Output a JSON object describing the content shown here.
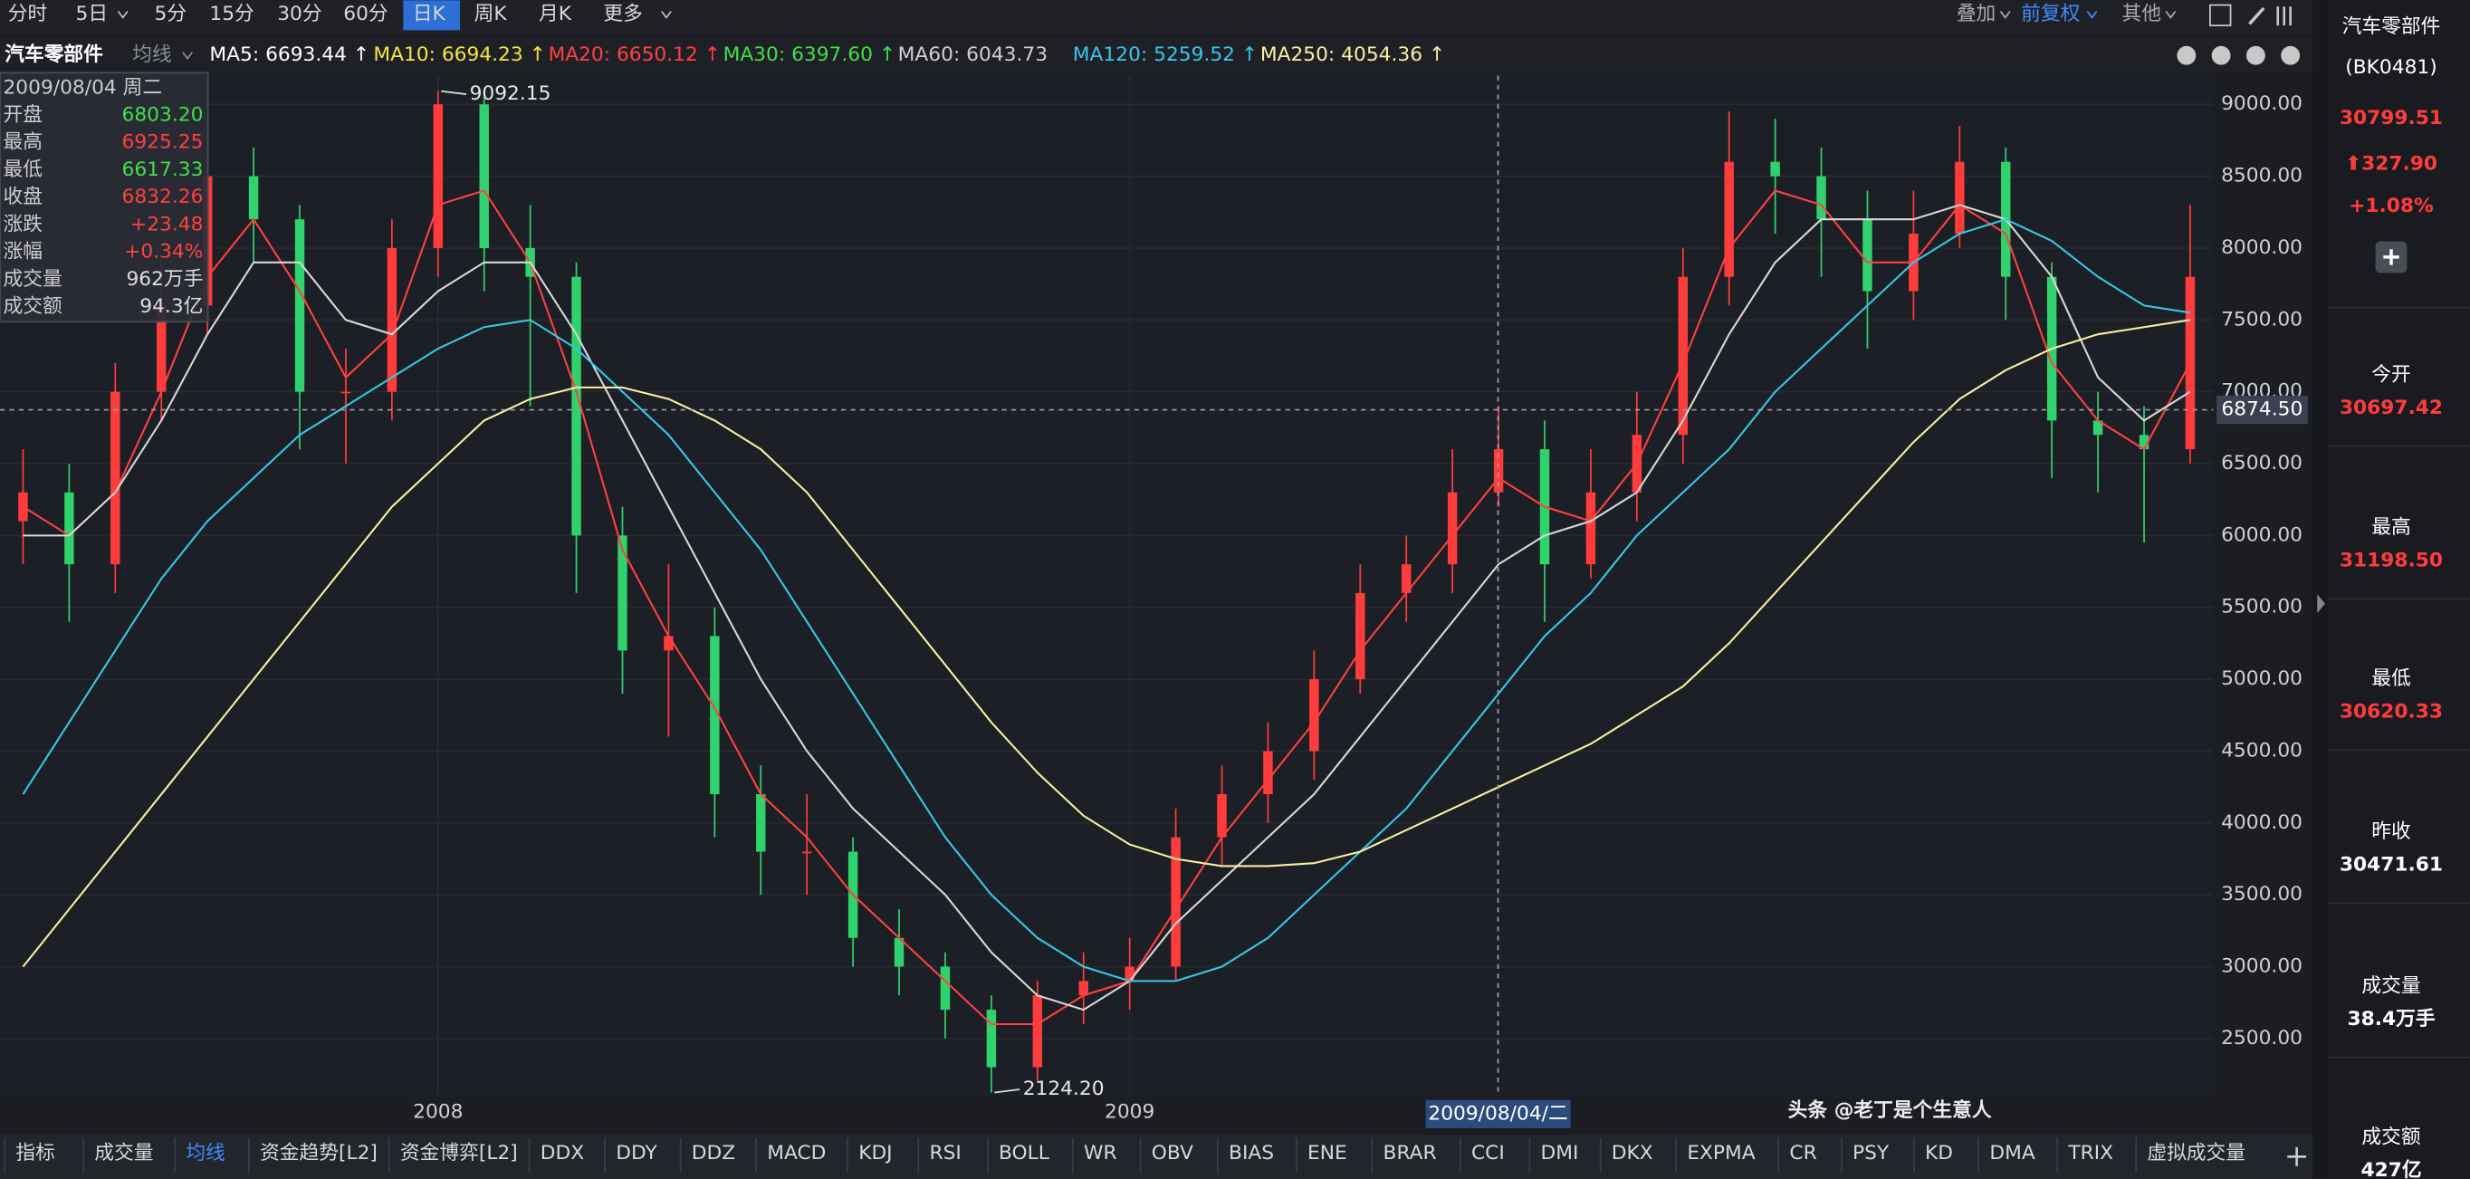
{
  "toolbar": {
    "periods": [
      "分时",
      "5日",
      "5分",
      "15分",
      "30分",
      "60分",
      "日K",
      "周K",
      "月K",
      "更多"
    ],
    "tools": [
      "叠加",
      "前复权",
      "其他"
    ]
  },
  "ma_bar": {
    "name": "汽车零部件",
    "label": "均线",
    "items": [
      {
        "text": "MA5: 6693.44 ↑",
        "color": "#ffffff"
      },
      {
        "text": "MA10: 6694.23 ↑",
        "color": "#f5e63c"
      },
      {
        "text": "MA20: 6650.12 ↑",
        "color": "#ff4040"
      },
      {
        "text": "MA30: 6397.60 ↑",
        "color": "#3ee04a"
      },
      {
        "text": "MA60: 6043.73",
        "color": "#d0d0d0"
      },
      {
        "text": "MA120: 5259.52 ↑",
        "color": "#35c8e8"
      },
      {
        "text": "MA250: 4054.36 ↑",
        "color": "#f8f0a0"
      }
    ]
  },
  "info_panel": {
    "date": "2009/08/04 周二",
    "rows": [
      {
        "label": "开盘",
        "value": "6803.20",
        "color": "#3ee04a"
      },
      {
        "label": "最高",
        "value": "6925.25",
        "color": "#ff4040"
      },
      {
        "label": "最低",
        "value": "6617.33",
        "color": "#3ee04a"
      },
      {
        "label": "收盘",
        "value": "6832.26",
        "color": "#ff4040"
      },
      {
        "label": "涨跌",
        "value": "+23.48",
        "color": "#ff4040"
      },
      {
        "label": "涨幅",
        "value": "+0.34%",
        "color": "#ff4040"
      },
      {
        "label": "成交量",
        "value": "962万手",
        "color": "#dddddd"
      },
      {
        "label": "成交额",
        "value": "94.3亿",
        "color": "#dddddd"
      }
    ]
  },
  "chart_data": {
    "type": "candlestick",
    "categories": [
      null,
      null,
      null,
      null,
      null,
      null,
      null,
      null,
      null,
      "2008",
      null,
      null,
      null,
      null,
      null,
      null,
      null,
      null,
      null,
      null,
      null,
      null,
      null,
      null,
      "2009",
      null,
      null,
      null,
      null,
      null,
      null,
      null,
      null,
      null,
      null,
      null,
      null,
      null,
      null,
      null,
      null,
      null,
      null,
      null,
      null,
      null,
      null,
      null
    ],
    "open": [
      6100,
      6300,
      5800,
      7000,
      7600,
      8500,
      8200,
      7000,
      7000,
      8000,
      9000,
      8000,
      7800,
      6000,
      5200,
      5300,
      4200,
      3800,
      3800,
      3200,
      3000,
      2700,
      2300,
      2800,
      2900,
      3000,
      3900,
      4200,
      4500,
      5000,
      5600,
      5800,
      6300,
      6600,
      5800,
      6300,
      6700,
      7800,
      8600,
      8500,
      8200,
      7700,
      8100,
      8600,
      7800,
      6800,
      6700,
      6600
    ],
    "high": [
      6600,
      6500,
      7200,
      7900,
      8800,
      8700,
      8300,
      7300,
      8200,
      9092.15,
      9050,
      8300,
      7900,
      6200,
      5800,
      5500,
      4400,
      4200,
      3900,
      3400,
      3100,
      2800,
      2900,
      3100,
      3200,
      4100,
      4400,
      4700,
      5200,
      5800,
      6000,
      6600,
      6900,
      6800,
      6600,
      7000,
      8000,
      8950,
      8900,
      8700,
      8400,
      8400,
      8850,
      8700,
      7900,
      7000,
      6900,
      8300
    ],
    "low": [
      5800,
      5400,
      5600,
      6800,
      7400,
      7900,
      6600,
      6500,
      6800,
      7800,
      7700,
      6900,
      5600,
      4900,
      4600,
      3900,
      3500,
      3500,
      3000,
      2800,
      2500,
      2124.2,
      2200,
      2600,
      2700,
      2900,
      3700,
      4000,
      4300,
      4900,
      5400,
      5600,
      6200,
      5400,
      5700,
      6100,
      6500,
      7600,
      8100,
      7800,
      7300,
      7500,
      8000,
      7500,
      6400,
      6300,
      5950,
      6500
    ],
    "close": [
      6300,
      5800,
      7000,
      7600,
      8500,
      8200,
      7000,
      7000,
      8000,
      9000,
      8000,
      7800,
      6000,
      5200,
      5300,
      4200,
      3800,
      3800,
      3200,
      3000,
      2700,
      2300,
      2800,
      2900,
      3000,
      3900,
      4200,
      4500,
      5000,
      5600,
      5800,
      6300,
      6600,
      5800,
      6300,
      6700,
      7800,
      8600,
      8500,
      8200,
      7700,
      8100,
      8600,
      7800,
      6800,
      6700,
      6600,
      7800
    ],
    "up_color": "#ff3c3c",
    "down_color": "#2fd26c",
    "series": [
      {
        "name": "MA20",
        "color": "#ff4040",
        "values": [
          6200,
          6000,
          6300,
          7000,
          7800,
          8200,
          7700,
          7100,
          7400,
          8300,
          8400,
          7900,
          7000,
          5900,
          5300,
          4800,
          4200,
          3900,
          3500,
          3200,
          2900,
          2600,
          2600,
          2800,
          2900,
          3400,
          3900,
          4300,
          4700,
          5200,
          5600,
          6000,
          6400,
          6200,
          6100,
          6500,
          7200,
          8000,
          8400,
          8300,
          7900,
          7900,
          8300,
          8100,
          7200,
          6800,
          6600,
          7200
        ]
      },
      {
        "name": "MA60",
        "color": "#d8d8d8",
        "values": [
          6000,
          6000,
          6300,
          6800,
          7400,
          7900,
          7900,
          7500,
          7400,
          7700,
          7900,
          7900,
          7400,
          6800,
          6200,
          5600,
          5000,
          4500,
          4100,
          3800,
          3500,
          3100,
          2800,
          2700,
          2900,
          3300,
          3600,
          3900,
          4200,
          4600,
          5000,
          5400,
          5800,
          6000,
          6100,
          6300,
          6800,
          7400,
          7900,
          8200,
          8200,
          8200,
          8300,
          8200,
          7800,
          7100,
          6800,
          7000
        ]
      },
      {
        "name": "MA120",
        "color": "#35c8e8",
        "values": [
          4200,
          4700,
          5200,
          5700,
          6100,
          6400,
          6700,
          6900,
          7100,
          7300,
          7450,
          7500,
          7300,
          7000,
          6700,
          6300,
          5900,
          5400,
          4900,
          4400,
          3900,
          3500,
          3200,
          3000,
          2900,
          2900,
          3000,
          3200,
          3500,
          3800,
          4100,
          4500,
          4900,
          5300,
          5600,
          6000,
          6300,
          6600,
          7000,
          7300,
          7600,
          7900,
          8100,
          8200,
          8050,
          7800,
          7600,
          7550
        ]
      },
      {
        "name": "MA250",
        "color": "#f8f0a0",
        "values": [
          3000,
          3400,
          3800,
          4200,
          4600,
          5000,
          5400,
          5800,
          6200,
          6500,
          6800,
          6950,
          7030,
          7030,
          6950,
          6800,
          6600,
          6300,
          5900,
          5500,
          5100,
          4700,
          4350,
          4050,
          3850,
          3750,
          3700,
          3700,
          3720,
          3800,
          3950,
          4100,
          4250,
          4400,
          4550,
          4750,
          4950,
          5250,
          5600,
          5950,
          6300,
          6650,
          6950,
          7150,
          7300,
          7400,
          7450,
          7500
        ]
      }
    ],
    "annotations": [
      {
        "value": 9092.15,
        "label": "9092.15"
      },
      {
        "value": 2124.2,
        "label": "2124.20"
      }
    ],
    "crosshair": {
      "value": 6874.5,
      "label": "6874.50",
      "date_label": "2009/08/04/二"
    },
    "ylim": [
      2100,
      9200
    ],
    "yticks": [
      {
        "value": 2500,
        "label": "2500.00"
      },
      {
        "value": 3000,
        "label": "3000.00"
      },
      {
        "value": 3500,
        "label": "3500.00"
      },
      {
        "value": 4000,
        "label": "4000.00"
      },
      {
        "value": 4500,
        "label": "4500.00"
      },
      {
        "value": 5000,
        "label": "5000.00"
      },
      {
        "value": 5500,
        "label": "5500.00"
      },
      {
        "value": 6000,
        "label": "6000.00"
      },
      {
        "value": 6500,
        "label": "6500.00"
      },
      {
        "value": 7000,
        "label": "7000.00"
      },
      {
        "value": 7500,
        "label": "7500.00"
      },
      {
        "value": 8000,
        "label": "8000.00"
      },
      {
        "value": 8500,
        "label": "8500.00"
      },
      {
        "value": 9000,
        "label": "9000.00"
      }
    ],
    "grid": true
  },
  "side_panel": {
    "name": "汽车零部件",
    "code": "(BK0481)",
    "price": "30799.51",
    "change": "⬆327.90",
    "change_pct": "+1.08%",
    "stats": [
      {
        "label": "今开",
        "value": "30697.42",
        "color": "#ff3c3c"
      },
      {
        "label": "最高",
        "value": "31198.50",
        "color": "#ff3c3c"
      },
      {
        "label": "最低",
        "value": "30620.33",
        "color": "#ff3c3c"
      },
      {
        "label": "昨收",
        "value": "30471.61",
        "color": "#ffffff"
      },
      {
        "label": "成交量",
        "value": "38.4万手",
        "color": "#ffffff"
      },
      {
        "label": "成交额",
        "value": "427亿",
        "color": "#ffffff"
      }
    ]
  },
  "bottom_tabs": [
    "指标",
    "成交量",
    "均线",
    "资金趋势[L2]",
    "资金博弈[L2]",
    "DDX",
    "DDY",
    "DDZ",
    "MACD",
    "KDJ",
    "RSI",
    "BOLL",
    "WR",
    "OBV",
    "BIAS",
    "ENE",
    "BRAR",
    "CCI",
    "DMI",
    "DKX",
    "EXPMA",
    "CR",
    "PSY",
    "KD",
    "DMA",
    "TRIX",
    "虚拟成交量"
  ],
  "watermark": "头条 @老丁是个生意人"
}
